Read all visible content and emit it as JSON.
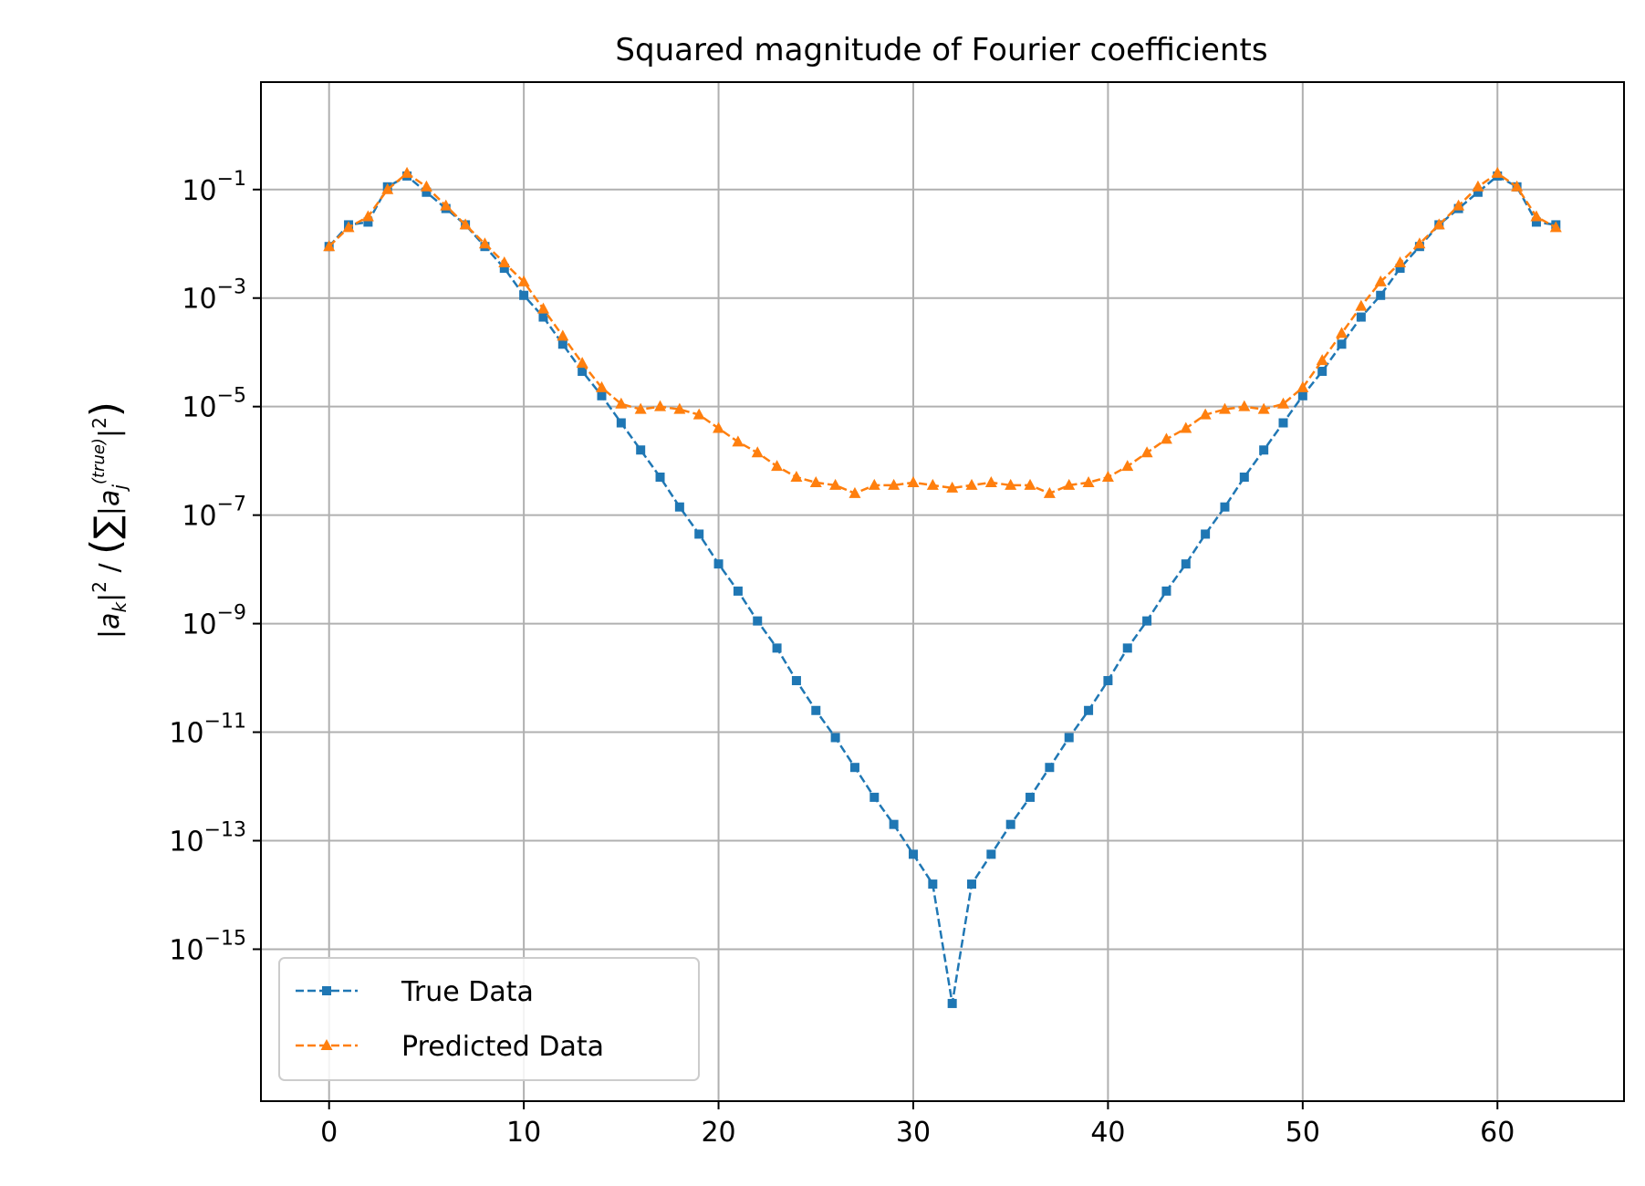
{
  "chart_data": {
    "type": "line",
    "title": "Squared magnitude of Fourier coefficients",
    "xlabel": "",
    "ylabel": "|a_k|² / (∑_j |a_j^(true)|²)",
    "y_scale": "log",
    "xlim": [
      -3.5,
      66.5
    ],
    "ylim_exponent": [
      -17.8,
      0.98
    ],
    "x_ticks": [
      0,
      10,
      20,
      30,
      40,
      50,
      60
    ],
    "y_tick_exponents": [
      -1,
      -3,
      -5,
      -7,
      -9,
      -11,
      -13,
      -15
    ],
    "grid": true,
    "legend_position": "lower-left",
    "x": [
      0,
      1,
      2,
      3,
      4,
      5,
      6,
      7,
      8,
      9,
      10,
      11,
      12,
      13,
      14,
      15,
      16,
      17,
      18,
      19,
      20,
      21,
      22,
      23,
      24,
      25,
      26,
      27,
      28,
      29,
      30,
      31,
      32,
      33,
      34,
      35,
      36,
      37,
      38,
      39,
      40,
      41,
      42,
      43,
      44,
      45,
      46,
      47,
      48,
      49,
      50,
      51,
      52,
      53,
      54,
      55,
      56,
      57,
      58,
      59,
      60,
      61,
      62,
      63
    ],
    "series": [
      {
        "name": "True Data",
        "color": "#1f77b4",
        "marker": "square",
        "line_style": "dashed",
        "log10_values": [
          -2.05,
          -1.65,
          -1.6,
          -0.95,
          -0.75,
          -1.05,
          -1.35,
          -1.65,
          -2.05,
          -2.45,
          -2.95,
          -3.35,
          -3.85,
          -4.35,
          -4.8,
          -5.3,
          -5.8,
          -6.3,
          -6.85,
          -7.35,
          -7.9,
          -8.4,
          -8.95,
          -9.45,
          -10.05,
          -10.6,
          -11.1,
          -11.65,
          -12.2,
          -12.7,
          -13.25,
          -13.8,
          -16.0,
          -13.8,
          -13.25,
          -12.7,
          -12.2,
          -11.65,
          -11.1,
          -10.6,
          -10.05,
          -9.45,
          -8.95,
          -8.4,
          -7.9,
          -7.35,
          -6.85,
          -6.3,
          -5.8,
          -5.3,
          -4.8,
          -4.35,
          -3.85,
          -3.35,
          -2.95,
          -2.45,
          -2.05,
          -1.65,
          -1.35,
          -1.05,
          -0.75,
          -0.95,
          -1.6,
          -1.65
        ]
      },
      {
        "name": "Predicted Data",
        "color": "#ff7f0e",
        "marker": "triangle",
        "line_style": "dashed",
        "log10_values": [
          -2.05,
          -1.7,
          -1.5,
          -1.0,
          -0.7,
          -0.95,
          -1.3,
          -1.65,
          -2.0,
          -2.35,
          -2.7,
          -3.2,
          -3.7,
          -4.2,
          -4.65,
          -4.95,
          -5.05,
          -5.0,
          -5.05,
          -5.15,
          -5.4,
          -5.65,
          -5.85,
          -6.1,
          -6.3,
          -6.4,
          -6.45,
          -6.6,
          -6.45,
          -6.45,
          -6.4,
          -6.45,
          -6.5,
          -6.45,
          -6.4,
          -6.45,
          -6.45,
          -6.6,
          -6.45,
          -6.4,
          -6.3,
          -6.1,
          -5.85,
          -5.6,
          -5.4,
          -5.15,
          -5.05,
          -5.0,
          -5.05,
          -4.95,
          -4.65,
          -4.15,
          -3.65,
          -3.15,
          -2.7,
          -2.35,
          -2.0,
          -1.65,
          -1.3,
          -0.95,
          -0.7,
          -0.95,
          -1.5,
          -1.7
        ]
      }
    ],
    "legend": [
      "True Data",
      "Predicted Data"
    ]
  }
}
